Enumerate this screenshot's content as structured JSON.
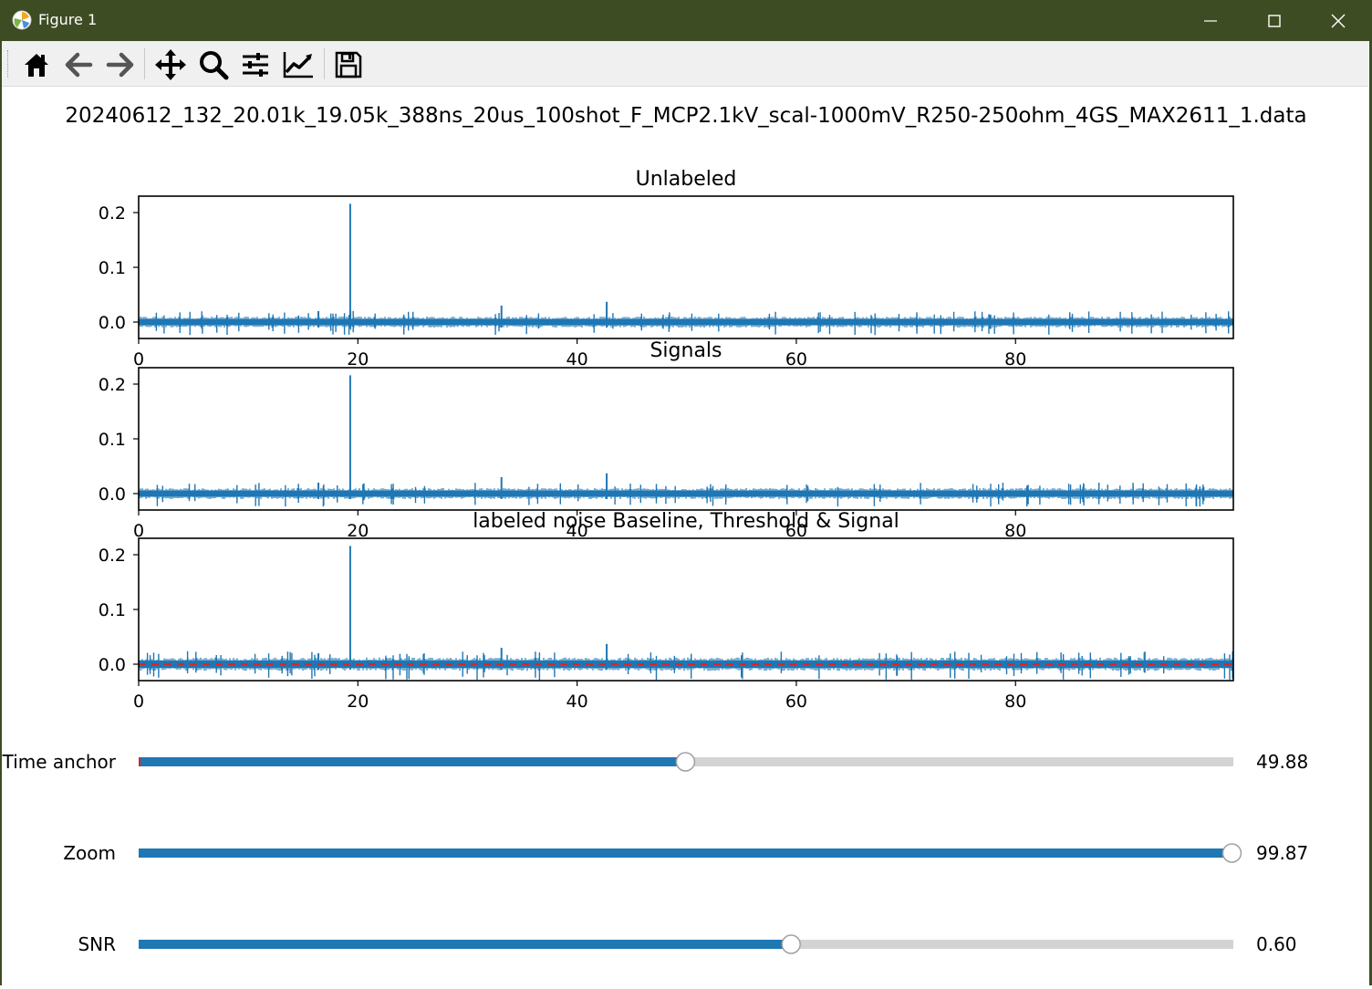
{
  "window": {
    "title": "Figure 1",
    "icon": "matplotlib-icon"
  },
  "titlebar_buttons": [
    {
      "name": "minimize-button",
      "icon": "minimize-icon"
    },
    {
      "name": "maximize-button",
      "icon": "maximize-icon"
    },
    {
      "name": "close-button",
      "icon": "close-icon"
    }
  ],
  "toolbar": {
    "buttons": [
      {
        "name": "home-button",
        "icon": "home-icon"
      },
      {
        "name": "back-button",
        "icon": "arrow-left-icon"
      },
      {
        "name": "forward-button",
        "icon": "arrow-right-icon"
      },
      {
        "name": "pan-button",
        "icon": "move-icon"
      },
      {
        "name": "zoom-button",
        "icon": "magnifier-icon"
      },
      {
        "name": "subplots-button",
        "icon": "sliders-icon"
      },
      {
        "name": "edit-axes-button",
        "icon": "line-chart-icon"
      },
      {
        "name": "save-button",
        "icon": "floppy-disk-icon"
      }
    ]
  },
  "figure": {
    "suptitle": "20240612_132_20.01k_19.05k_388ns_20us_100shot_F_MCP2.1kV_scal-1000mV_R250-250ohm_4GS_MAX2611_1.data"
  },
  "chart_data": [
    {
      "type": "line",
      "title": "Unlabeled",
      "xlim": [
        0,
        99.87
      ],
      "ylim": [
        -0.03,
        0.23
      ],
      "xticks": [
        "0",
        "20",
        "40",
        "60",
        "80"
      ],
      "yticks": [
        "0.0",
        "0.1",
        "0.2"
      ],
      "line_color": "#1f77b4",
      "noise_band": [
        -0.01,
        0.01
      ],
      "peaks": [
        {
          "x": 16.4,
          "y": 0.02
        },
        {
          "x": 19.3,
          "y": 0.216
        },
        {
          "x": 33.1,
          "y": 0.03
        },
        {
          "x": 42.7,
          "y": 0.037
        }
      ]
    },
    {
      "type": "line",
      "title": "Signals",
      "xlim": [
        0,
        99.87
      ],
      "ylim": [
        -0.03,
        0.23
      ],
      "xticks": [
        "0",
        "20",
        "40",
        "60",
        "80"
      ],
      "yticks": [
        "0.0",
        "0.1",
        "0.2"
      ],
      "line_color": "#1f77b4",
      "noise_band": [
        -0.01,
        0.01
      ],
      "peaks": [
        {
          "x": 16.4,
          "y": 0.02
        },
        {
          "x": 19.3,
          "y": 0.216
        },
        {
          "x": 33.1,
          "y": 0.03
        },
        {
          "x": 42.7,
          "y": 0.037
        }
      ]
    },
    {
      "type": "line",
      "title": "labeled noise Baseline, Threshold & Signal",
      "xlim": [
        0,
        99.87
      ],
      "ylim": [
        -0.03,
        0.23
      ],
      "xticks": [
        "0",
        "20",
        "40",
        "60",
        "80"
      ],
      "yticks": [
        "0.0",
        "0.1",
        "0.2"
      ],
      "line_color": "#1f77b4",
      "noise_band": [
        -0.012,
        0.012
      ],
      "peaks": [
        {
          "x": 16.4,
          "y": 0.02
        },
        {
          "x": 19.3,
          "y": 0.216
        },
        {
          "x": 33.1,
          "y": 0.03
        },
        {
          "x": 42.7,
          "y": 0.037
        }
      ],
      "baseline": {
        "y": 0.0,
        "color": "#d62728",
        "style": "dashed"
      }
    }
  ],
  "sliders": [
    {
      "label": "Time anchor",
      "value_text": "49.88",
      "fraction": 0.4995
    },
    {
      "label": "Zoom",
      "value_text": "99.87",
      "fraction": 0.9987
    },
    {
      "label": "SNR",
      "value_text": "0.60",
      "fraction": 0.596
    }
  ]
}
